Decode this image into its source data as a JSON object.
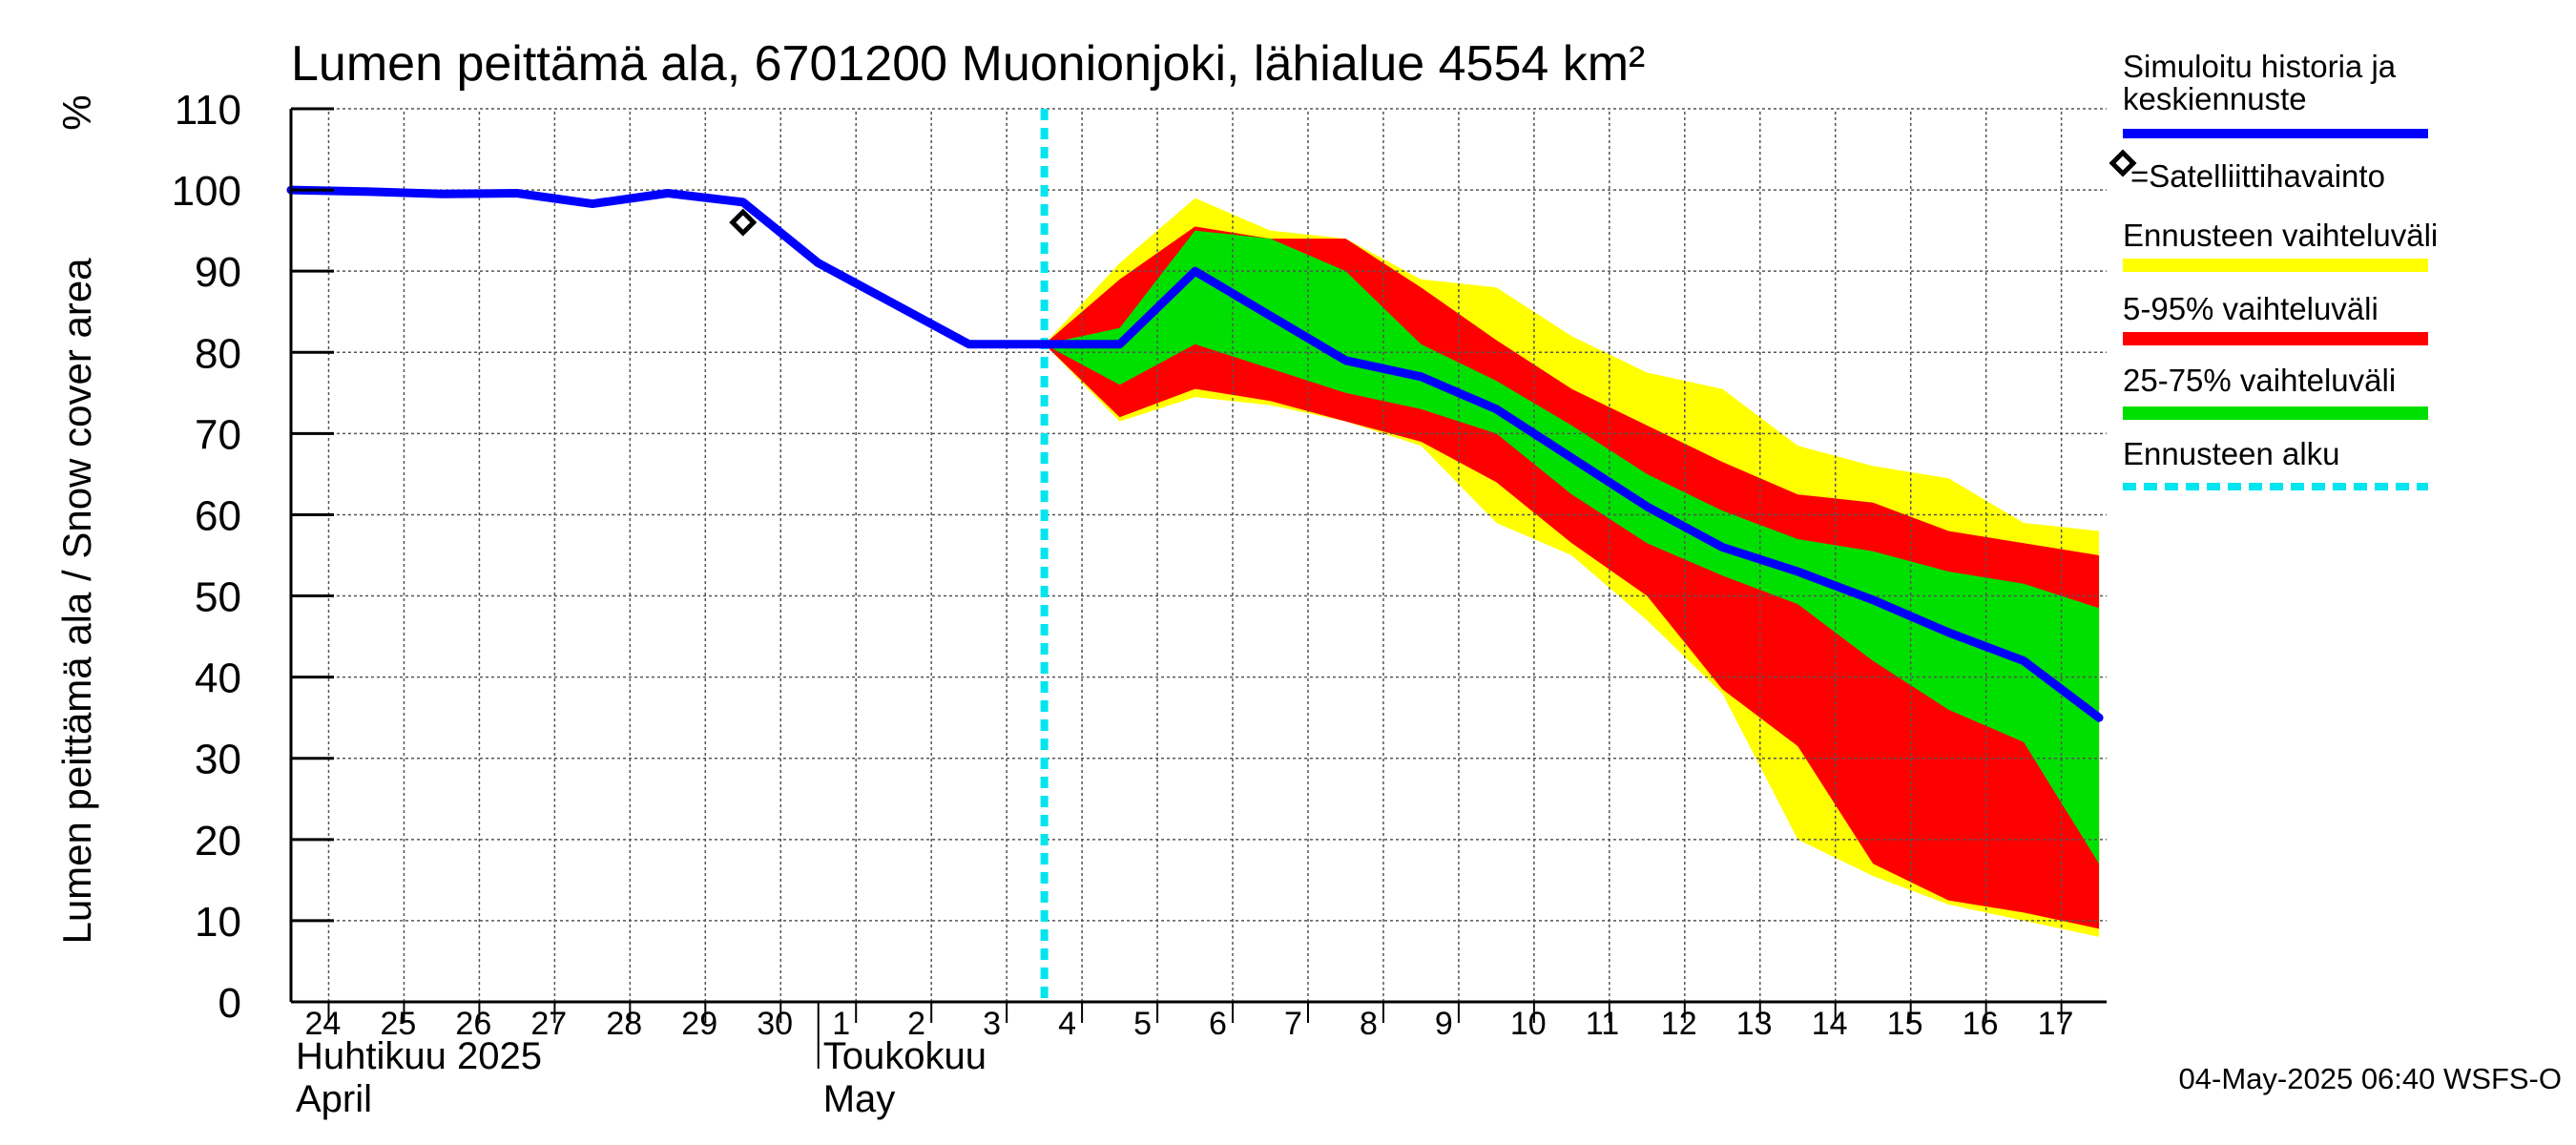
{
  "chart_data": {
    "type": "area",
    "title": "Lumen peittämä ala, 6701200 Muonionjoki, lähialue 4554 km²",
    "ylabel": "Lumen peittämä ala / Snow cover area",
    "yunit": "%",
    "ylim": [
      0,
      110
    ],
    "yticks": [
      0,
      10,
      20,
      30,
      40,
      50,
      60,
      70,
      80,
      90,
      100,
      110
    ],
    "xlim": [
      23.5,
      47.6
    ],
    "grid": true,
    "day_ticks": [
      {
        "label": "24",
        "x": 24
      },
      {
        "label": "25",
        "x": 25
      },
      {
        "label": "26",
        "x": 26
      },
      {
        "label": "27",
        "x": 27
      },
      {
        "label": "28",
        "x": 28
      },
      {
        "label": "29",
        "x": 29
      },
      {
        "label": "30",
        "x": 30
      },
      {
        "label": "1",
        "x": 31
      },
      {
        "label": "2",
        "x": 32
      },
      {
        "label": "3",
        "x": 33
      },
      {
        "label": "4",
        "x": 34
      },
      {
        "label": "5",
        "x": 35
      },
      {
        "label": "6",
        "x": 36
      },
      {
        "label": "7",
        "x": 37
      },
      {
        "label": "8",
        "x": 38
      },
      {
        "label": "9",
        "x": 39
      },
      {
        "label": "10",
        "x": 40
      },
      {
        "label": "11",
        "x": 41
      },
      {
        "label": "12",
        "x": 42
      },
      {
        "label": "13",
        "x": 43
      },
      {
        "label": "14",
        "x": 44
      },
      {
        "label": "15",
        "x": 45
      },
      {
        "label": "16",
        "x": 46
      },
      {
        "label": "17",
        "x": 47
      }
    ],
    "month_labels": [
      {
        "fi": "Huhtikuu  2025",
        "en": "April",
        "x": 23.5
      },
      {
        "fi": "Toukokuu",
        "en": "May",
        "x": 30.5
      }
    ],
    "forecast_start_x": 33.5,
    "series": [
      {
        "name": "Simuloitu historia ja keskiennuste",
        "color": "#0000ff",
        "x": [
          23.5,
          24.5,
          25.5,
          26.5,
          27.5,
          28.5,
          29.5,
          30.5,
          31.5,
          32.5,
          33.5,
          34.5,
          35.5,
          36.5,
          37.5,
          38.5,
          39.5,
          40.5,
          41.5,
          42.5,
          43.5,
          44.5,
          45.5,
          46.5,
          47.5
        ],
        "values": [
          100,
          99.8,
          99.5,
          99.6,
          98.3,
          99.6,
          98.5,
          91,
          86,
          81,
          81,
          81,
          90,
          84.5,
          79,
          77,
          73,
          67,
          61,
          56,
          53,
          49.5,
          45.5,
          42,
          35
        ]
      },
      {
        "name": "Ennusteen vaihteluväli",
        "color": "#ffff00",
        "x": [
          33.5,
          34.5,
          35.5,
          36.5,
          37.5,
          38.5,
          39.5,
          40.5,
          41.5,
          42.5,
          43.5,
          44.5,
          45.5,
          46.5,
          47.5
        ],
        "upper": [
          81,
          91,
          99,
          95,
          94,
          89,
          88,
          82,
          77.5,
          75.5,
          68.5,
          66,
          64.5,
          59,
          58
        ],
        "lower": [
          81,
          71.5,
          74.5,
          73.5,
          71.5,
          68.5,
          59,
          55,
          47,
          38,
          20,
          15.5,
          12,
          10,
          8
        ]
      },
      {
        "name": "5-95% vaihteluväli",
        "color": "#ff0000",
        "x": [
          33.5,
          34.5,
          35.5,
          36.5,
          37.5,
          38.5,
          39.5,
          40.5,
          41.5,
          42.5,
          43.5,
          44.5,
          45.5,
          46.5,
          47.5
        ],
        "upper": [
          81,
          89,
          95.5,
          94,
          94,
          88,
          81.5,
          75.5,
          71,
          66.5,
          62.5,
          61.5,
          58,
          56.5,
          55
        ],
        "lower": [
          81,
          72,
          75.5,
          74,
          71.5,
          69,
          64,
          56.5,
          50,
          38.5,
          31.5,
          17,
          12.5,
          11,
          9
        ]
      },
      {
        "name": "25-75% vaihteluväli",
        "color": "#00e000",
        "x": [
          33.5,
          34.5,
          35.5,
          36.5,
          37.5,
          38.5,
          39.5,
          40.5,
          41.5,
          42.5,
          43.5,
          44.5,
          45.5,
          46.5,
          47.5
        ],
        "upper": [
          81,
          83,
          95,
          94,
          90,
          81,
          76.5,
          71,
          65,
          60.5,
          57,
          55.5,
          53,
          51.5,
          48.5
        ],
        "lower": [
          81,
          76,
          81,
          78,
          75,
          73,
          70,
          62.5,
          56.5,
          52.5,
          49,
          42,
          36,
          32,
          17
        ]
      }
    ],
    "observations": {
      "name": "Satelliittihavainto",
      "points": [
        {
          "x": 29.5,
          "y": 96
        }
      ]
    },
    "legend": {
      "position": "right",
      "entries": [
        {
          "label_lines": [
            "Simuloitu historia ja",
            "keskiennuste"
          ],
          "color": "#0000ff",
          "style": "line"
        },
        {
          "label_lines": [
            "=Satelliittihavainto"
          ],
          "color": "#000000",
          "style": "diamond"
        },
        {
          "label_lines": [
            "Ennusteen vaihteluväli"
          ],
          "color": "#ffff00",
          "style": "band"
        },
        {
          "label_lines": [
            "5-95% vaihteluväli"
          ],
          "color": "#ff0000",
          "style": "band"
        },
        {
          "label_lines": [
            "25-75% vaihteluväli"
          ],
          "color": "#00e000",
          "style": "band"
        },
        {
          "label_lines": [
            "Ennusteen alku"
          ],
          "color": "#00e5ee",
          "style": "dashed"
        }
      ]
    },
    "footer": "04-May-2025 06:40 WSFS-O"
  }
}
